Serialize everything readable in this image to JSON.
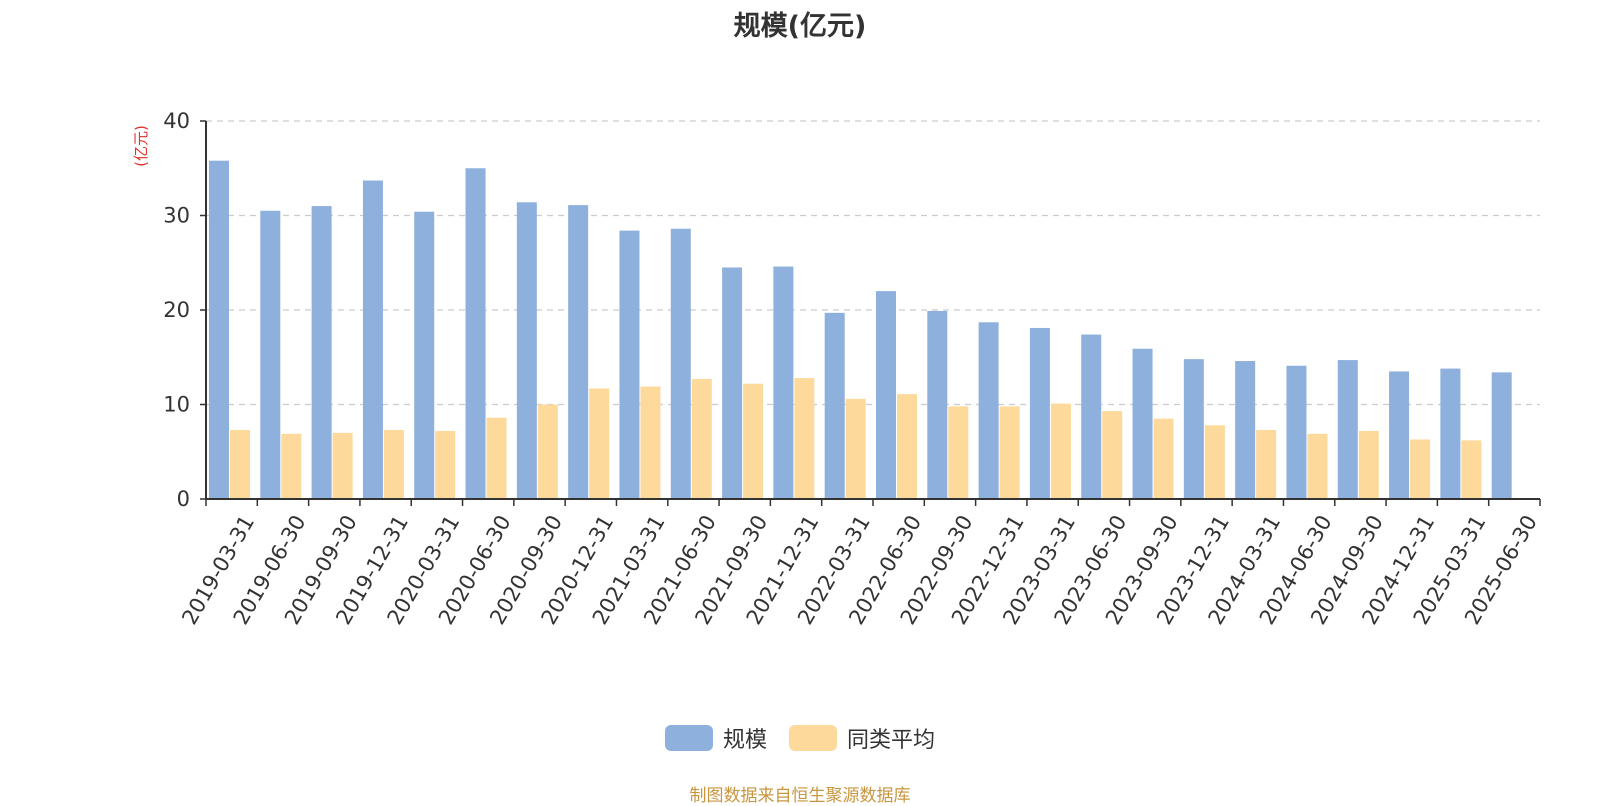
{
  "chart_data": {
    "type": "bar",
    "title": "规模(亿元)",
    "ylabel": "(亿元)",
    "xlabel": "",
    "ylim": [
      0,
      40
    ],
    "yticks": [
      0,
      10,
      20,
      30,
      40
    ],
    "grid": true,
    "legend_position": "bottom",
    "categories": [
      "2019-03-31",
      "2019-06-30",
      "2019-09-30",
      "2019-12-31",
      "2020-03-31",
      "2020-06-30",
      "2020-09-30",
      "2020-12-31",
      "2021-03-31",
      "2021-06-30",
      "2021-09-30",
      "2021-12-31",
      "2022-03-31",
      "2022-06-30",
      "2022-09-30",
      "2022-12-31",
      "2023-03-31",
      "2023-06-30",
      "2023-09-30",
      "2023-12-31",
      "2024-03-31",
      "2024-06-30",
      "2024-09-30",
      "2024-12-31",
      "2025-03-31",
      "2025-06-30"
    ],
    "series": [
      {
        "name": "规模",
        "color": "#8eb0dc",
        "values": [
          35.8,
          30.5,
          31.0,
          33.7,
          30.4,
          35.0,
          31.4,
          31.1,
          28.4,
          28.6,
          24.5,
          24.6,
          19.7,
          22.0,
          19.9,
          18.7,
          18.1,
          17.4,
          15.9,
          14.8,
          14.6,
          14.1,
          14.7,
          13.5,
          13.8,
          13.4
        ]
      },
      {
        "name": "同类平均",
        "color": "#fdd99b",
        "values": [
          7.3,
          6.9,
          7.0,
          7.3,
          7.2,
          8.6,
          10.0,
          11.7,
          11.9,
          12.7,
          12.2,
          12.8,
          10.6,
          11.1,
          9.8,
          9.8,
          10.1,
          9.3,
          8.5,
          7.8,
          7.3,
          6.9,
          7.2,
          6.3,
          6.2,
          null
        ]
      }
    ]
  },
  "source_note": "制图数据来自恒生聚源数据库",
  "colors": {
    "title": "#333333",
    "axis": "#333333",
    "grid": "#cccccc",
    "ylabel": "#e0312b",
    "source_note": "#c8963e"
  }
}
